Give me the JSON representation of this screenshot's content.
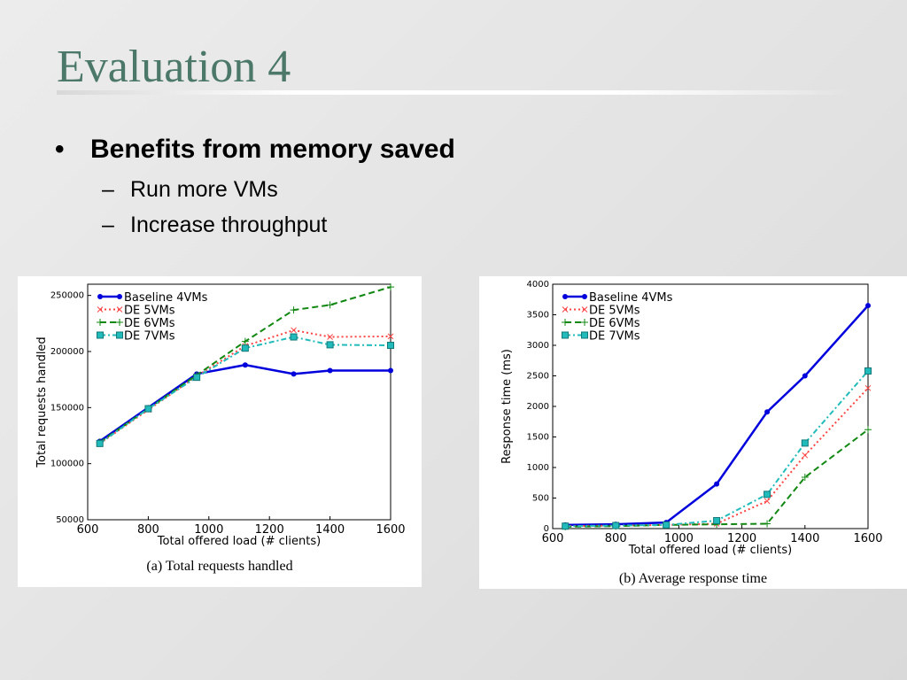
{
  "slide": {
    "title": "Evaluation 4",
    "bullet": "Benefits from memory saved",
    "bullet_marker": "•",
    "sub_marker": "–",
    "sub_bullets": [
      "Run more VMs",
      "Increase throughput"
    ]
  },
  "chart_data": [
    {
      "type": "line",
      "caption": "(a)  Total requests handled",
      "xlabel": "Total offered load (# clients)",
      "ylabel": "Total requests handled",
      "xlim": [
        600,
        1600
      ],
      "ylim": [
        50000,
        260000
      ],
      "xticks": [
        600,
        800,
        1000,
        1200,
        1400,
        1600
      ],
      "yticks": [
        50000,
        100000,
        150000,
        200000,
        250000
      ],
      "legend": "top-left",
      "x": [
        640,
        800,
        960,
        1120,
        1280,
        1400,
        1600
      ],
      "series": [
        {
          "name": "Baseline 4VMs",
          "color": "#0000dd",
          "style": "solid",
          "marker": "circle",
          "values": [
            120000,
            150000,
            180000,
            188000,
            180000,
            183000,
            183000
          ]
        },
        {
          "name": "DE 5VMs",
          "color": "#ff4444",
          "style": "dotted",
          "marker": "x",
          "values": [
            118000,
            148000,
            178000,
            205000,
            219000,
            213000,
            213500
          ]
        },
        {
          "name": "DE 6VMs",
          "color": "#118811",
          "style": "dashed",
          "marker": "plus",
          "values": [
            119000,
            149000,
            179000,
            209000,
            237000,
            241500,
            257500
          ]
        },
        {
          "name": "DE 7VMs",
          "color": "#22bbbb",
          "style": "dashdot",
          "marker": "square",
          "values": [
            118000,
            149000,
            177000,
            203000,
            213000,
            206000,
            205500
          ]
        }
      ]
    },
    {
      "type": "line",
      "caption": "(b)  Average response time",
      "xlabel": "Total offered load (# clients)",
      "ylabel": "Response time (ms)",
      "xlim": [
        600,
        1600
      ],
      "ylim": [
        0,
        4000
      ],
      "xticks": [
        600,
        800,
        1000,
        1200,
        1400,
        1600
      ],
      "yticks": [
        0,
        500,
        1000,
        1500,
        2000,
        2500,
        3000,
        3500,
        4000
      ],
      "legend": "top-left",
      "x": [
        640,
        800,
        960,
        1120,
        1280,
        1400,
        1600
      ],
      "series": [
        {
          "name": "Baseline 4VMs",
          "color": "#0000dd",
          "style": "solid",
          "marker": "circle",
          "values": [
            60,
            70,
            100,
            730,
            1910,
            2500,
            3650
          ]
        },
        {
          "name": "DE 5VMs",
          "color": "#ff4444",
          "style": "dotted",
          "marker": "x",
          "values": [
            40,
            50,
            60,
            80,
            450,
            1200,
            2300
          ]
        },
        {
          "name": "DE 6VMs",
          "color": "#118811",
          "style": "dashed",
          "marker": "plus",
          "values": [
            30,
            40,
            60,
            70,
            80,
            840,
            1620
          ]
        },
        {
          "name": "DE 7VMs",
          "color": "#22bbbb",
          "style": "dashdot",
          "marker": "square",
          "values": [
            40,
            50,
            60,
            130,
            560,
            1400,
            2580
          ]
        }
      ]
    }
  ]
}
